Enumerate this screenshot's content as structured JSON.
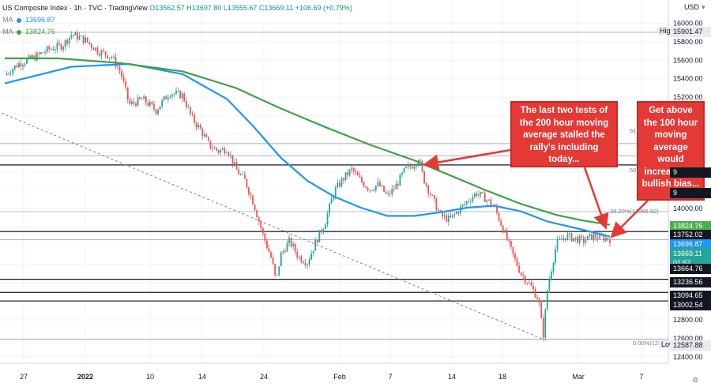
{
  "header": {
    "symbol": "US Composite Index · 1h · TVC · TradingView",
    "ohlc": "O13562.57  H13697.80  L13555.67  C13669.11  +106.69 (+0.79%)",
    "ma1_label": "MA",
    "ma1_value": "13696.87",
    "ma2_label": "MA",
    "ma2_value": "13824.76",
    "currency": "USD"
  },
  "colors": {
    "candle_up": "#26a69a",
    "candle_down": "#ef5350",
    "ma100": "#2196f3",
    "ma200": "#43a047",
    "arrow": "#e53935",
    "trendline": "#787b86"
  },
  "annotations": {
    "callout1": "The last two tests of the 200 hour moving average stalled the rally's including today...",
    "callout2": "Get above the 100 hour moving average would increase the bullish bias...",
    "fib_618": "61.8",
    "fib_500": "50.0",
    "fib_382": "38.20%(13966.82)",
    "fib_000": "0.00%(125",
    "high_label": "High",
    "low_label": "Low"
  },
  "price_tags": {
    "high": "15901.47",
    "low": "12587.88",
    "ma200": "13824.76",
    "r1": "13752.02",
    "ma100": "13696.87",
    "last": "13669.11",
    "countdown": "01:57",
    "s1": "13664.76",
    "s2": "13236.56",
    "s3": "13094.65",
    "s4": "13002.54",
    "edge1": "9",
    "edge2": "9"
  },
  "chart_data": {
    "type": "candlestick",
    "y_axis_ticks": [
      "16000.00",
      "15800.00",
      "15600.00",
      "15400.00",
      "15200.00",
      "15000.00",
      "14800.00",
      "14600.00",
      "14400.00",
      "14200.00",
      "14000.00",
      "13800.00",
      "13600.00",
      "13400.00",
      "13200.00",
      "13000.00",
      "12800.00",
      "12600.00",
      "12400.00"
    ],
    "x_axis_ticks": [
      "27",
      "2022",
      "10",
      "14",
      "24",
      "Feb",
      "7",
      "14",
      "18",
      "Mar",
      "7"
    ],
    "ylim": [
      12330,
      16250
    ],
    "horizontal_levels": [
      15901.47,
      14570,
      14700,
      14470,
      13966.82,
      13752.02,
      13664.76,
      13236.56,
      13094.65,
      13002.54,
      12587.88
    ],
    "price_path": [
      [
        0,
        15440
      ],
      [
        3,
        15560
      ],
      [
        7,
        15640
      ],
      [
        10,
        15720
      ],
      [
        13,
        15760
      ],
      [
        15,
        15880
      ],
      [
        18,
        15820
      ],
      [
        21,
        15700
      ],
      [
        24,
        15640
      ],
      [
        26,
        15480
      ],
      [
        28,
        15120
      ],
      [
        31,
        15180
      ],
      [
        34,
        15060
      ],
      [
        37,
        15250
      ],
      [
        40,
        15220
      ],
      [
        42,
        14980
      ],
      [
        44,
        14850
      ],
      [
        46,
        14680
      ],
      [
        48,
        14620
      ],
      [
        50,
        14650
      ],
      [
        52,
        14420
      ],
      [
        54,
        14300
      ],
      [
        56,
        14050
      ],
      [
        58,
        13720
      ],
      [
        60,
        13450
      ],
      [
        61,
        13200
      ],
      [
        62,
        13500
      ],
      [
        64,
        13650
      ],
      [
        66,
        13480
      ],
      [
        68,
        13420
      ],
      [
        70,
        13650
      ],
      [
        72,
        13850
      ],
      [
        74,
        14180
      ],
      [
        76,
        14320
      ],
      [
        78,
        14420
      ],
      [
        80,
        14300
      ],
      [
        82,
        14210
      ],
      [
        84,
        14260
      ],
      [
        86,
        14130
      ],
      [
        88,
        14250
      ],
      [
        90,
        14420
      ],
      [
        92,
        14480
      ],
      [
        93,
        14560
      ],
      [
        94,
        14340
      ],
      [
        96,
        14120
      ],
      [
        98,
        13920
      ],
      [
        100,
        13880
      ],
      [
        102,
        13980
      ],
      [
        104,
        14080
      ],
      [
        106,
        14170
      ],
      [
        108,
        14110
      ],
      [
        110,
        14020
      ],
      [
        112,
        13780
      ],
      [
        114,
        13520
      ],
      [
        116,
        13300
      ],
      [
        118,
        13180
      ],
      [
        120,
        13020
      ],
      [
        121,
        12620
      ],
      [
        122,
        13150
      ],
      [
        124,
        13620
      ],
      [
        126,
        13700
      ],
      [
        128,
        13680
      ],
      [
        130,
        13650
      ],
      [
        132,
        13700
      ],
      [
        134,
        13690
      ],
      [
        136,
        13670
      ]
    ],
    "ma100_path": [
      [
        0,
        15350
      ],
      [
        15,
        15530
      ],
      [
        28,
        15560
      ],
      [
        40,
        15450
      ],
      [
        50,
        15180
      ],
      [
        56,
        14880
      ],
      [
        62,
        14550
      ],
      [
        68,
        14300
      ],
      [
        74,
        14130
      ],
      [
        80,
        14010
      ],
      [
        86,
        13920
      ],
      [
        92,
        13920
      ],
      [
        98,
        13960
      ],
      [
        104,
        14010
      ],
      [
        110,
        14030
      ],
      [
        116,
        13970
      ],
      [
        122,
        13860
      ],
      [
        130,
        13770
      ],
      [
        136,
        13697
      ]
    ],
    "ma200_path": [
      [
        0,
        15620
      ],
      [
        12,
        15620
      ],
      [
        26,
        15570
      ],
      [
        40,
        15480
      ],
      [
        52,
        15300
      ],
      [
        62,
        15080
      ],
      [
        72,
        14880
      ],
      [
        82,
        14690
      ],
      [
        92,
        14520
      ],
      [
        100,
        14360
      ],
      [
        108,
        14200
      ],
      [
        116,
        14050
      ],
      [
        124,
        13930
      ],
      [
        130,
        13870
      ],
      [
        136,
        13825
      ]
    ]
  }
}
